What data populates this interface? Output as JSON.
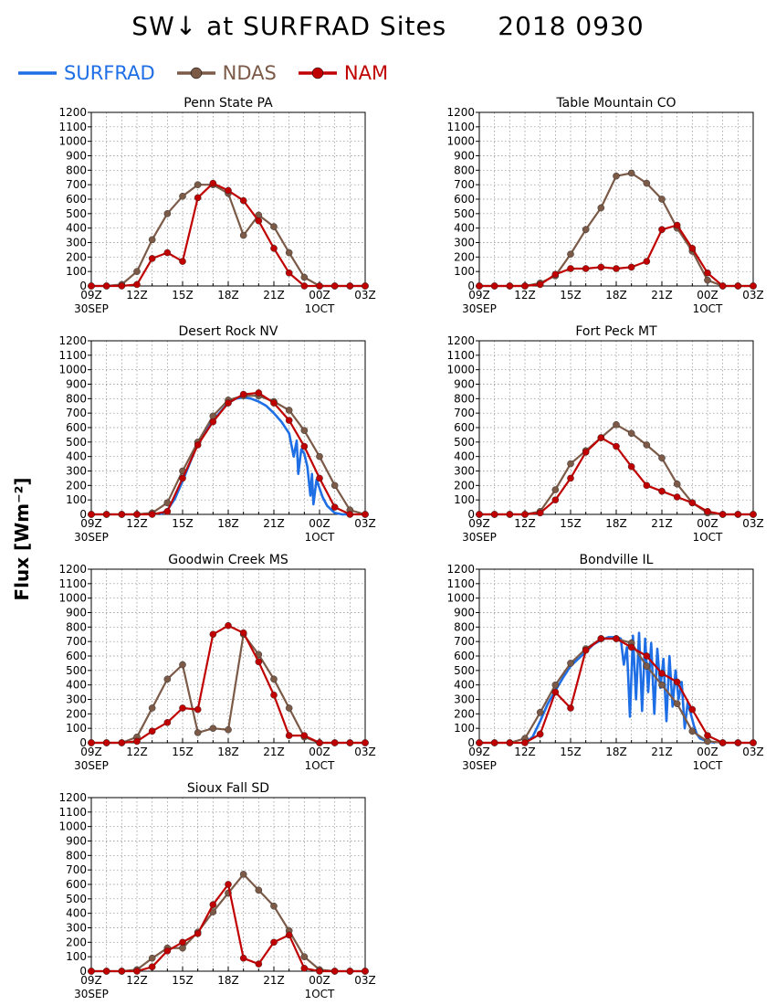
{
  "title": {
    "left": "SW↓ at SURFRAD Sites",
    "right": "2018 0930"
  },
  "legend": [
    {
      "name": "SURFRAD",
      "color": "#1e6ee6",
      "marker": false
    },
    {
      "name": "NDAS",
      "color": "#7b5a48",
      "marker": true
    },
    {
      "name": "NAM",
      "color": "#c00000",
      "marker": true
    }
  ],
  "ylabel": "Flux [Wm⁻²]",
  "chart_data": [
    {
      "type": "line",
      "title": "Penn State PA",
      "x": [
        9,
        10,
        11,
        12,
        13,
        14,
        15,
        16,
        17,
        18,
        19,
        20,
        21,
        22,
        23,
        24,
        25,
        26,
        27
      ],
      "x_ticks": [
        "09Z",
        "12Z",
        "15Z",
        "18Z",
        "21Z",
        "00Z",
        "03Z"
      ],
      "x_tick_dates": [
        "30SEP",
        "",
        "",
        "",
        "",
        "1OCT",
        ""
      ],
      "ylim": [
        0,
        1200
      ],
      "y_ticks": [
        0,
        100,
        200,
        300,
        400,
        500,
        600,
        700,
        800,
        900,
        1000,
        1100,
        1200
      ],
      "series": [
        {
          "name": "NDAS",
          "color": "#7b5a48",
          "values": [
            0,
            0,
            10,
            100,
            320,
            500,
            620,
            700,
            700,
            640,
            350,
            490,
            410,
            230,
            60,
            0,
            0,
            0,
            0
          ]
        },
        {
          "name": "NAM",
          "color": "#c00000",
          "values": [
            0,
            0,
            0,
            10,
            190,
            230,
            170,
            610,
            710,
            660,
            590,
            450,
            260,
            90,
            0,
            0,
            0,
            0,
            0
          ]
        }
      ]
    },
    {
      "type": "line",
      "title": "Table Mountain CO",
      "x": [
        9,
        10,
        11,
        12,
        13,
        14,
        15,
        16,
        17,
        18,
        19,
        20,
        21,
        22,
        23,
        24,
        25,
        26,
        27
      ],
      "x_ticks": [
        "09Z",
        "12Z",
        "15Z",
        "18Z",
        "21Z",
        "00Z",
        "03Z"
      ],
      "x_tick_dates": [
        "30SEP",
        "",
        "",
        "",
        "",
        "1OCT",
        ""
      ],
      "ylim": [
        0,
        1200
      ],
      "y_ticks": [
        0,
        100,
        200,
        300,
        400,
        500,
        600,
        700,
        800,
        900,
        1000,
        1100,
        1200
      ],
      "series": [
        {
          "name": "NDAS",
          "color": "#7b5a48",
          "values": [
            0,
            0,
            0,
            0,
            20,
            70,
            220,
            390,
            540,
            760,
            780,
            710,
            600,
            400,
            240,
            40,
            0,
            0,
            0
          ]
        },
        {
          "name": "NAM",
          "color": "#c00000",
          "values": [
            0,
            0,
            0,
            0,
            10,
            80,
            120,
            120,
            130,
            120,
            130,
            170,
            390,
            420,
            260,
            90,
            0,
            0,
            0
          ]
        }
      ]
    },
    {
      "type": "line",
      "title": "Desert Rock NV",
      "x": [
        9,
        10,
        11,
        12,
        13,
        14,
        15,
        16,
        17,
        18,
        19,
        20,
        21,
        22,
        23,
        24,
        25,
        26,
        27
      ],
      "x_ticks": [
        "09Z",
        "12Z",
        "15Z",
        "18Z",
        "21Z",
        "00Z",
        "03Z"
      ],
      "x_tick_dates": [
        "30SEP",
        "",
        "",
        "",
        "",
        "1OCT",
        ""
      ],
      "ylim": [
        0,
        1200
      ],
      "y_ticks": [
        0,
        100,
        200,
        300,
        400,
        500,
        600,
        700,
        800,
        900,
        1000,
        1100,
        1200
      ],
      "series": [
        {
          "name": "SURFRAD",
          "color": "#1e6ee6",
          "x": [
            13.5,
            14,
            14.5,
            15,
            15.5,
            16,
            16.5,
            17,
            17.5,
            18,
            18.5,
            19,
            19.5,
            20,
            20.5,
            21,
            21.5,
            22,
            22.3,
            22.5,
            22.6,
            22.8,
            23,
            23.2,
            23.4,
            23.5,
            23.6,
            23.8,
            24,
            24.2,
            24.5,
            25,
            25.5,
            26
          ],
          "values": [
            0,
            30,
            110,
            230,
            360,
            490,
            580,
            650,
            710,
            770,
            800,
            810,
            800,
            780,
            750,
            700,
            640,
            560,
            400,
            510,
            280,
            450,
            420,
            330,
            130,
            280,
            70,
            240,
            180,
            120,
            60,
            10,
            0,
            0
          ]
        },
        {
          "name": "NDAS",
          "color": "#7b5a48",
          "values": [
            0,
            0,
            0,
            0,
            10,
            80,
            300,
            500,
            680,
            790,
            820,
            820,
            780,
            720,
            580,
            400,
            200,
            30,
            0
          ]
        },
        {
          "name": "NAM",
          "color": "#c00000",
          "values": [
            0,
            0,
            0,
            0,
            0,
            20,
            250,
            480,
            640,
            770,
            830,
            840,
            770,
            650,
            470,
            250,
            50,
            0,
            0
          ]
        }
      ]
    },
    {
      "type": "line",
      "title": "Fort Peck MT",
      "x": [
        9,
        10,
        11,
        12,
        13,
        14,
        15,
        16,
        17,
        18,
        19,
        20,
        21,
        22,
        23,
        24,
        25,
        26,
        27
      ],
      "x_ticks": [
        "09Z",
        "12Z",
        "15Z",
        "18Z",
        "21Z",
        "00Z",
        "03Z"
      ],
      "x_tick_dates": [
        "30SEP",
        "",
        "",
        "",
        "",
        "1OCT",
        ""
      ],
      "ylim": [
        0,
        1200
      ],
      "y_ticks": [
        0,
        100,
        200,
        300,
        400,
        500,
        600,
        700,
        800,
        900,
        1000,
        1100,
        1200
      ],
      "series": [
        {
          "name": "NDAS",
          "color": "#7b5a48",
          "values": [
            0,
            0,
            0,
            0,
            20,
            170,
            350,
            440,
            530,
            620,
            560,
            480,
            390,
            210,
            80,
            10,
            0,
            0,
            0
          ]
        },
        {
          "name": "NAM",
          "color": "#c00000",
          "values": [
            0,
            0,
            0,
            0,
            10,
            100,
            250,
            430,
            530,
            470,
            330,
            200,
            160,
            120,
            80,
            20,
            0,
            0,
            0
          ]
        }
      ]
    },
    {
      "type": "line",
      "title": "Goodwin Creek MS",
      "x": [
        9,
        10,
        11,
        12,
        13,
        14,
        15,
        16,
        17,
        18,
        19,
        20,
        21,
        22,
        23,
        24,
        25,
        26,
        27
      ],
      "x_ticks": [
        "09Z",
        "12Z",
        "15Z",
        "18Z",
        "21Z",
        "00Z",
        "03Z"
      ],
      "x_tick_dates": [
        "30SEP",
        "",
        "",
        "",
        "",
        "1OCT",
        ""
      ],
      "ylim": [
        0,
        1200
      ],
      "y_ticks": [
        0,
        100,
        200,
        300,
        400,
        500,
        600,
        700,
        800,
        900,
        1000,
        1100,
        1200
      ],
      "series": [
        {
          "name": "NDAS",
          "color": "#7b5a48",
          "values": [
            0,
            0,
            0,
            40,
            240,
            440,
            540,
            70,
            100,
            90,
            750,
            610,
            440,
            240,
            40,
            0,
            0,
            0,
            0
          ]
        },
        {
          "name": "NAM",
          "color": "#c00000",
          "values": [
            0,
            0,
            0,
            10,
            80,
            140,
            240,
            230,
            750,
            810,
            760,
            560,
            330,
            50,
            50,
            0,
            0,
            0,
            0
          ]
        }
      ]
    },
    {
      "type": "line",
      "title": "Bondville IL",
      "x": [
        9,
        10,
        11,
        12,
        13,
        14,
        15,
        16,
        17,
        18,
        19,
        20,
        21,
        22,
        23,
        24,
        25,
        26,
        27
      ],
      "x_ticks": [
        "09Z",
        "12Z",
        "15Z",
        "18Z",
        "21Z",
        "00Z",
        "03Z"
      ],
      "x_tick_dates": [
        "30SEP",
        "",
        "",
        "",
        "",
        "1OCT",
        ""
      ],
      "ylim": [
        0,
        1200
      ],
      "y_ticks": [
        0,
        100,
        200,
        300,
        400,
        500,
        600,
        700,
        800,
        900,
        1000,
        1100,
        1200
      ],
      "series": [
        {
          "name": "SURFRAD",
          "color": "#1e6ee6",
          "x": [
            12,
            12.5,
            13,
            13.5,
            14,
            14.5,
            15,
            15.5,
            16,
            16.5,
            17,
            17.5,
            18,
            18.3,
            18.5,
            18.7,
            18.9,
            19.1,
            19.3,
            19.5,
            19.7,
            19.9,
            20.1,
            20.3,
            20.5,
            20.7,
            20.9,
            21.1,
            21.3,
            21.5,
            21.7,
            21.9,
            22.1,
            22.3,
            22.5,
            22.7,
            22.9,
            23.1,
            23.3,
            23.5,
            24,
            24.5
          ],
          "values": [
            0,
            40,
            150,
            270,
            360,
            450,
            530,
            580,
            630,
            680,
            710,
            730,
            730,
            720,
            540,
            660,
            180,
            740,
            300,
            760,
            220,
            720,
            350,
            690,
            200,
            650,
            380,
            580,
            150,
            600,
            250,
            500,
            300,
            420,
            100,
            280,
            200,
            120,
            60,
            30,
            10,
            0
          ]
        },
        {
          "name": "NDAS",
          "color": "#7b5a48",
          "values": [
            0,
            0,
            0,
            30,
            210,
            400,
            550,
            650,
            720,
            720,
            690,
            530,
            400,
            270,
            80,
            10,
            0,
            0,
            0
          ]
        },
        {
          "name": "NAM",
          "color": "#c00000",
          "values": [
            0,
            0,
            0,
            0,
            60,
            350,
            240,
            640,
            720,
            720,
            660,
            600,
            480,
            420,
            230,
            50,
            0,
            0,
            0
          ]
        }
      ]
    },
    {
      "type": "line",
      "title": "Sioux Fall SD",
      "x": [
        9,
        10,
        11,
        12,
        13,
        14,
        15,
        16,
        17,
        18,
        19,
        20,
        21,
        22,
        23,
        24,
        25,
        26,
        27
      ],
      "x_ticks": [
        "09Z",
        "12Z",
        "15Z",
        "18Z",
        "21Z",
        "00Z",
        "03Z"
      ],
      "x_tick_dates": [
        "30SEP",
        "",
        "",
        "",
        "",
        "1OCT",
        ""
      ],
      "ylim": [
        0,
        1200
      ],
      "y_ticks": [
        0,
        100,
        200,
        300,
        400,
        500,
        600,
        700,
        800,
        900,
        1000,
        1100,
        1200
      ],
      "series": [
        {
          "name": "NDAS",
          "color": "#7b5a48",
          "values": [
            0,
            0,
            0,
            10,
            90,
            160,
            160,
            270,
            410,
            540,
            670,
            560,
            450,
            280,
            100,
            10,
            0,
            0,
            0
          ]
        },
        {
          "name": "NAM",
          "color": "#c00000",
          "values": [
            0,
            0,
            0,
            0,
            30,
            140,
            200,
            260,
            460,
            600,
            90,
            50,
            200,
            250,
            20,
            0,
            0,
            0,
            0
          ]
        }
      ]
    }
  ]
}
